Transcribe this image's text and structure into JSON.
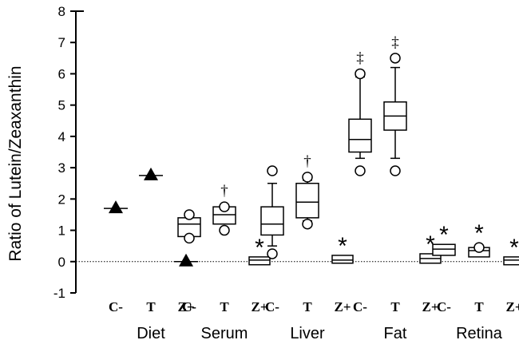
{
  "chart_data": {
    "type": "box",
    "ylabel": "Ratio of Lutein/Zeaxanthin",
    "ylim": [
      -1,
      8
    ],
    "yticks": [
      "-1",
      "0",
      "1",
      "2",
      "3",
      "4",
      "5",
      "6",
      "7",
      "8"
    ],
    "reference_line": 0,
    "groups": [
      {
        "name": "Diet",
        "items": [
          {
            "label": "C-",
            "kind": "point",
            "value": 1.7
          },
          {
            "label": "T",
            "kind": "point",
            "value": 2.75
          },
          {
            "label": "Z+",
            "kind": "point",
            "value": 0.0
          }
        ]
      },
      {
        "name": "Serum",
        "items": [
          {
            "label": "C-",
            "kind": "box",
            "min": 0.8,
            "q1": 0.8,
            "median": 1.2,
            "q3": 1.4,
            "max": 1.4,
            "outliers": [
              0.75,
              1.5
            ]
          },
          {
            "label": "T",
            "kind": "box",
            "min": 1.2,
            "q1": 1.2,
            "median": 1.5,
            "q3": 1.75,
            "max": 1.75,
            "outliers": [
              1.0,
              1.75
            ],
            "marker": "†"
          },
          {
            "label": "Z+",
            "kind": "box",
            "min": -0.1,
            "q1": -0.1,
            "median": 0.05,
            "q3": 0.15,
            "max": 0.15,
            "outliers": [],
            "marker": "*"
          }
        ]
      },
      {
        "name": "Liver",
        "items": [
          {
            "label": "C-",
            "kind": "box",
            "min": 0.5,
            "q1": 0.85,
            "median": 1.2,
            "q3": 1.75,
            "max": 2.5,
            "outliers": [
              0.25,
              2.9
            ]
          },
          {
            "label": "T",
            "kind": "box",
            "min": 1.3,
            "q1": 1.4,
            "median": 1.9,
            "q3": 2.5,
            "max": 2.6,
            "outliers": [
              1.2,
              2.7
            ],
            "marker": "†"
          },
          {
            "label": "Z+",
            "kind": "box",
            "min": -0.05,
            "q1": -0.05,
            "median": 0.05,
            "q3": 0.2,
            "max": 0.2,
            "outliers": [],
            "marker": "*"
          }
        ]
      },
      {
        "name": "Fat",
        "items": [
          {
            "label": "C-",
            "kind": "box",
            "min": 3.3,
            "q1": 3.5,
            "median": 3.9,
            "q3": 4.55,
            "max": 5.9,
            "outliers": [
              2.9,
              6.0
            ],
            "marker": "‡"
          },
          {
            "label": "T",
            "kind": "box",
            "min": 3.3,
            "q1": 4.2,
            "median": 4.65,
            "q3": 5.1,
            "max": 6.2,
            "outliers": [
              2.9,
              6.5
            ],
            "marker": "‡"
          },
          {
            "label": "Z+",
            "kind": "box",
            "min": -0.05,
            "q1": -0.05,
            "median": 0.1,
            "q3": 0.25,
            "max": 0.25,
            "outliers": [],
            "marker": "*"
          }
        ]
      },
      {
        "name": "Retina",
        "items": [
          {
            "label": "C-",
            "kind": "box",
            "min": 0.2,
            "q1": 0.2,
            "median": 0.4,
            "q3": 0.55,
            "max": 0.55,
            "outliers": [],
            "marker": "*"
          },
          {
            "label": "T",
            "kind": "box",
            "min": 0.15,
            "q1": 0.15,
            "median": 0.35,
            "q3": 0.45,
            "max": 0.45,
            "outliers": [
              0.45
            ],
            "marker": "*"
          },
          {
            "label": "Z+",
            "kind": "box",
            "min": -0.1,
            "q1": -0.1,
            "median": 0.05,
            "q3": 0.15,
            "max": 0.15,
            "outliers": [],
            "marker": "*"
          }
        ]
      }
    ]
  }
}
